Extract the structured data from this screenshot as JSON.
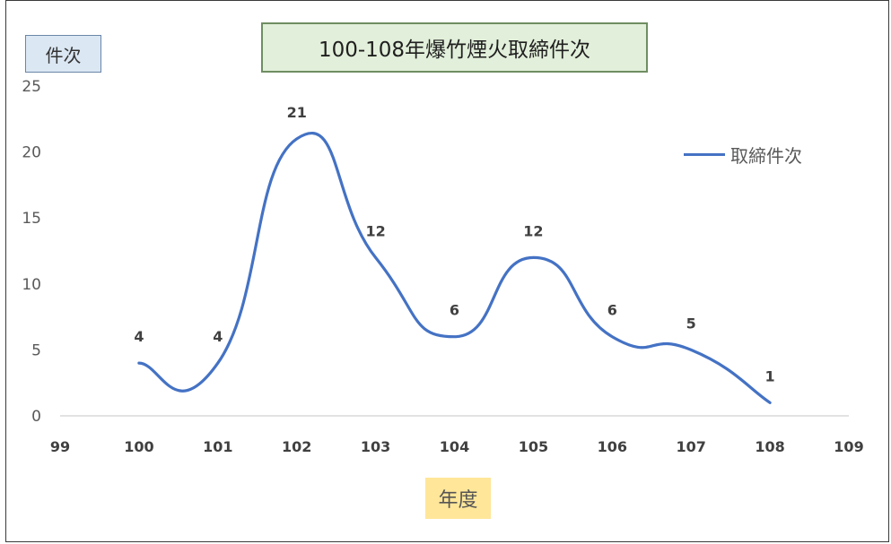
{
  "chart_data": {
    "type": "line",
    "title": "100-108年爆竹煙火取締件次",
    "ylabel": "件次",
    "xlabel": "年度",
    "x": [
      100,
      101,
      102,
      103,
      104,
      105,
      106,
      107,
      108
    ],
    "series": [
      {
        "name": "取締件次",
        "values": [
          4,
          4,
          21,
          12,
          6,
          12,
          6,
          5,
          1
        ],
        "color": "#4472c4"
      }
    ],
    "xlim": [
      99,
      109
    ],
    "xticks": [
      "99",
      "100",
      "101",
      "102",
      "103",
      "104",
      "105",
      "106",
      "107",
      "108",
      "109"
    ],
    "ylim": [
      0,
      25
    ],
    "yticks": [
      "0",
      "5",
      "10",
      "15",
      "20",
      "25"
    ],
    "smooth": true,
    "data_labels": true,
    "grid": false,
    "legend_position": "right"
  }
}
